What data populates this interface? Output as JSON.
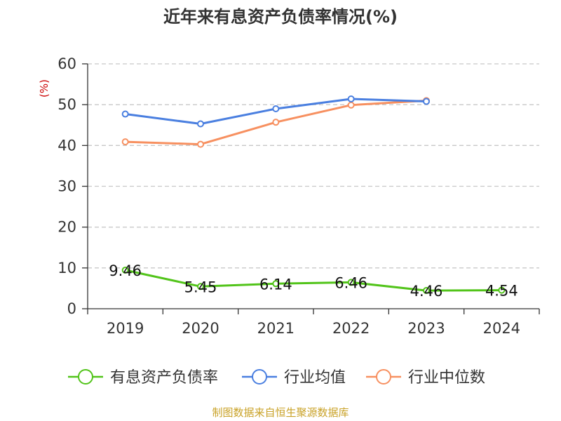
{
  "chart_data": {
    "type": "line",
    "title": "近年来有息资产负债率情况(%)",
    "ylabel": "(%)",
    "xlabel": "",
    "ylim": [
      0,
      60
    ],
    "yticks": [
      "0",
      "10",
      "20",
      "30",
      "40",
      "50",
      "60"
    ],
    "categories": [
      "2019",
      "2020",
      "2021",
      "2022",
      "2023",
      "2024"
    ],
    "series": [
      {
        "name": "有息资产负债率",
        "color": "#52c41a",
        "values": [
          9.46,
          5.45,
          6.14,
          6.46,
          4.46,
          4.54
        ],
        "labels": [
          "9.46",
          "5.45",
          "6.14",
          "6.46",
          "4.46",
          "4.54"
        ]
      },
      {
        "name": "行业均值",
        "color": "#4a7fe0",
        "values": [
          47.7,
          45.3,
          49.0,
          51.4,
          50.8,
          null
        ]
      },
      {
        "name": "行业中位数",
        "color": "#f79060",
        "values": [
          40.9,
          40.3,
          45.7,
          49.9,
          51.0,
          null
        ]
      }
    ],
    "grid": true,
    "legend": "bottom",
    "source": "制图数据来自恒生聚源数据库"
  }
}
